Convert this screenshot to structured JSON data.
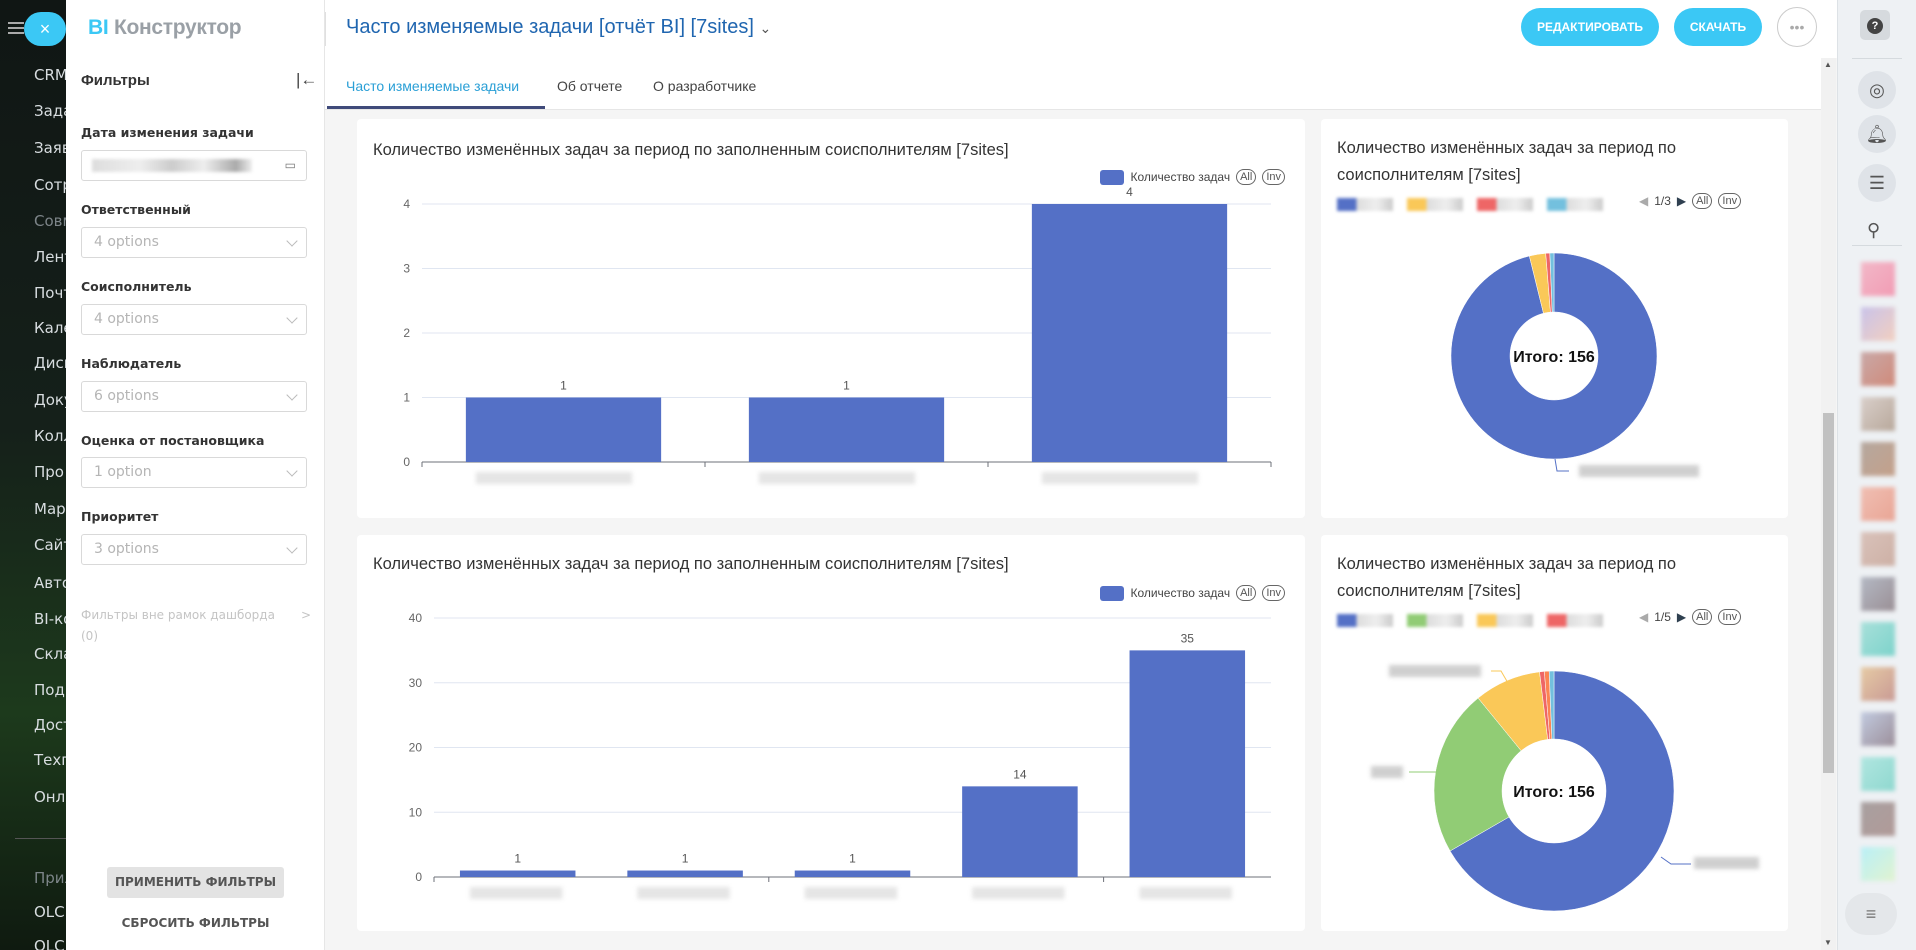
{
  "left_nav": {
    "items": [
      "CRM",
      "Зада",
      "Заяв",
      "Сотр",
      "Совм",
      "Лент",
      "Почт",
      "Кале",
      "Диск",
      "Доку",
      "Колл",
      "Про",
      "Мар",
      "Сайт",
      "Авто",
      "BI-ко",
      "Скла",
      "Подп",
      "Дост",
      "Техп",
      "Онла",
      "Прил",
      "OLC",
      "OLC"
    ],
    "close_label": "×"
  },
  "app": {
    "logo_bi": "BI",
    "logo_rest": " Конструктор"
  },
  "header": {
    "title": "Часто изменяемые задачи [отчёт BI] [7sites]",
    "edit_label": "РЕДАКТИРОВАТЬ",
    "download_label": "СКАЧАТЬ",
    "more_label": "•••"
  },
  "tabs": [
    {
      "label": "Часто изменяемые задачи",
      "active": true
    },
    {
      "label": "Об отчете",
      "active": false
    },
    {
      "label": "О разработчике",
      "active": false
    }
  ],
  "filters": {
    "title": "Фильтры",
    "fields": [
      {
        "label": "Дата изменения задачи",
        "value": ""
      },
      {
        "label": "Ответственный",
        "value": "4 options"
      },
      {
        "label": "Соисполнитель",
        "value": "4 options"
      },
      {
        "label": "Наблюдатель",
        "value": "6 options"
      },
      {
        "label": "Оценка от постановщика",
        "value": "1 option"
      },
      {
        "label": "Приоритет",
        "value": "3 options"
      }
    ],
    "outside_label": "Фильтры вне рамок дашборда",
    "outside_count": "(0)",
    "apply_label": "ПРИМЕНИТЬ ФИЛЬТРЫ",
    "reset_label": "СБРОСИТЬ ФИЛЬТРЫ"
  },
  "colors": {
    "accent": "#3bc8f5",
    "series": [
      "#5470c6",
      "#fac858",
      "#ee6666",
      "#73c0de",
      "#91cc75",
      "#fc8452"
    ]
  },
  "legend_controls": {
    "all": "All",
    "inv": "Inv"
  },
  "chart_data": [
    {
      "type": "bar",
      "title": "Количество изменённых задач за период по заполненным соисполнителям [7sites]",
      "legend": "Количество задач",
      "values": [
        1,
        1,
        4
      ],
      "yticks": [
        "0",
        "1",
        "2",
        "3",
        "4"
      ],
      "ylim": [
        0,
        4
      ],
      "labels": [
        "1",
        "1",
        "4"
      ]
    },
    {
      "type": "pie",
      "title": "Количество изменённых задач за период по соисполнителям [7sites]",
      "center_label": "Итого: 156",
      "pager": "1/3",
      "values": [
        150,
        4,
        1,
        1
      ],
      "colors": [
        "#5470c6",
        "#fac858",
        "#ee6666",
        "#73c0de"
      ]
    },
    {
      "type": "bar",
      "title": "Количество изменённых задач за период по заполненным соисполнителям [7sites]",
      "legend": "Количество задач",
      "values": [
        1,
        1,
        1,
        14,
        35
      ],
      "yticks": [
        "0",
        "10",
        "20",
        "30",
        "40"
      ],
      "ylim": [
        0,
        40
      ],
      "labels": [
        "1",
        "1",
        "1",
        "14",
        "35"
      ]
    },
    {
      "type": "pie",
      "title": "Количество изменённых задач за период по соисполнителям [7sites]",
      "center_label": "Итого: 156",
      "pager": "1/5",
      "values": [
        104,
        35,
        14,
        1,
        1,
        1
      ],
      "colors": [
        "#5470c6",
        "#91cc75",
        "#fac858",
        "#ee6666",
        "#fc8452",
        "#73c0de"
      ]
    }
  ]
}
